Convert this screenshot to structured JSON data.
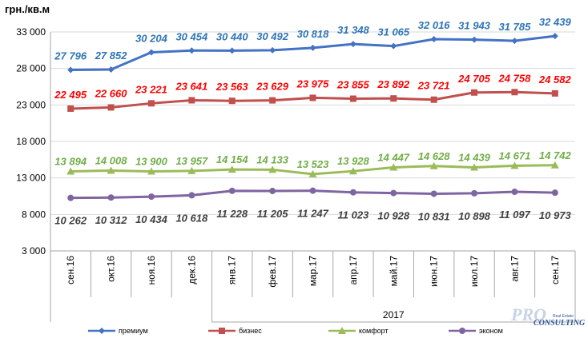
{
  "chart_data": {
    "type": "line",
    "title": "",
    "ylabel": "грн./кв.м",
    "xlabel": "",
    "year_label": "2017",
    "categories": [
      "сен.16",
      "окт.16",
      "ноя.16",
      "дек.16",
      "янв.17",
      "фев.17",
      "мар.17",
      "апр.17",
      "май.17",
      "июн.17",
      "июл.17",
      "авг.17",
      "сен.17"
    ],
    "ylim": [
      3000,
      33000
    ],
    "yticks": [
      3000,
      8000,
      13000,
      18000,
      23000,
      28000,
      33000
    ],
    "ytick_labels": [
      "3 000",
      "8 000",
      "13 000",
      "18 000",
      "23 000",
      "28 000",
      "33 000"
    ],
    "grid": "horizontal",
    "legend_position": "bottom",
    "series": [
      {
        "name": "премиум",
        "color": "#4472C4",
        "marker": "diamond",
        "values": [
          27796,
          27852,
          30204,
          30454,
          30440,
          30492,
          30818,
          31348,
          31065,
          32016,
          31943,
          31785,
          32439
        ],
        "labels": [
          "27 796",
          "27 852",
          "30 204",
          "30 454",
          "30 440",
          "30 492",
          "30 818",
          "31 348",
          "31 065",
          "32 016",
          "31 943",
          "31 785",
          "32 439"
        ]
      },
      {
        "name": "бизнес",
        "color": "#C0504D",
        "marker": "square",
        "values": [
          22495,
          22660,
          23221,
          23641,
          23563,
          23629,
          23975,
          23855,
          23892,
          23721,
          24705,
          24758,
          24582
        ],
        "labels": [
          "22 495",
          "22 660",
          "23 221",
          "23 641",
          "23 563",
          "23 629",
          "23 975",
          "23 855",
          "23 892",
          "23 721",
          "24 705",
          "24 758",
          "24 582"
        ]
      },
      {
        "name": "комфорт",
        "color": "#9BBB59",
        "marker": "triangle",
        "values": [
          13894,
          14008,
          13900,
          13957,
          14154,
          14133,
          13523,
          13928,
          14447,
          14628,
          14439,
          14671,
          14742
        ],
        "labels": [
          "13 894",
          "14 008",
          "13 900",
          "13 957",
          "14 154",
          "14 133",
          "13 523",
          "13 928",
          "14 447",
          "14 628",
          "14 439",
          "14 671",
          "14 742"
        ]
      },
      {
        "name": "эконом",
        "color": "#8064A2",
        "marker": "circle",
        "values": [
          10262,
          10312,
          10434,
          10618,
          11228,
          11205,
          11247,
          11023,
          10928,
          10831,
          10898,
          11097,
          10973
        ],
        "labels": [
          "10 262",
          "10 312",
          "10 434",
          "10 618",
          "11 228",
          "11 205",
          "11 247",
          "11 023",
          "10 928",
          "10 831",
          "10 898",
          "11 097",
          "10 973"
        ]
      }
    ],
    "label_colors": {
      "премиум": "#2E74B5",
      "бизнес": "#FF0000",
      "комфорт": "#70AD47",
      "эконом": "#404040"
    }
  },
  "watermark": {
    "text_main": "PRO",
    "text_sub": "CONSULTING",
    "text_small": "Real Estate"
  }
}
